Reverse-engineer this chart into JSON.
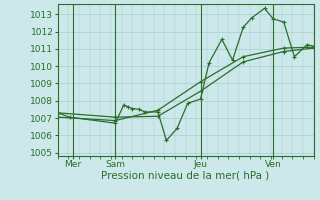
{
  "background_color": "#cce8ea",
  "grid_color": "#aacdd0",
  "line_color": "#2a6e2a",
  "xlabel": "Pression niveau de la mer( hPa )",
  "ylim": [
    1004.8,
    1013.6
  ],
  "yticks": [
    1005,
    1006,
    1007,
    1008,
    1009,
    1010,
    1011,
    1012,
    1013
  ],
  "xlim": [
    0,
    6.0
  ],
  "day_positions": [
    0.35,
    1.35,
    3.35,
    5.05
  ],
  "day_vlines": [
    0.35,
    1.35,
    3.35,
    5.05
  ],
  "day_labels": [
    "Mer",
    "Sam",
    "Jeu",
    "Ven"
  ],
  "series1_x": [
    0.0,
    0.28,
    1.35,
    1.55,
    1.65,
    1.75,
    1.9,
    2.05,
    2.35,
    2.55,
    2.8,
    3.05,
    3.35,
    3.55,
    3.85,
    4.1,
    4.35,
    4.55,
    4.85,
    5.05,
    5.3,
    5.55,
    5.85,
    6.0
  ],
  "series1_y": [
    1007.3,
    1007.05,
    1006.7,
    1007.75,
    1007.65,
    1007.55,
    1007.5,
    1007.35,
    1007.35,
    1005.7,
    1006.4,
    1007.85,
    1008.1,
    1010.2,
    1011.55,
    1010.35,
    1012.25,
    1012.8,
    1013.35,
    1012.75,
    1012.55,
    1010.55,
    1011.25,
    1011.15
  ],
  "series2_x": [
    0.0,
    1.35,
    2.35,
    3.35,
    4.35,
    5.3,
    6.0
  ],
  "series2_y": [
    1007.05,
    1006.85,
    1007.45,
    1009.1,
    1010.55,
    1011.05,
    1011.1
  ],
  "series3_x": [
    0.0,
    1.35,
    2.35,
    3.35,
    4.35,
    5.3,
    6.0
  ],
  "series3_y": [
    1007.3,
    1007.05,
    1007.1,
    1008.55,
    1010.25,
    1010.85,
    1011.05
  ]
}
